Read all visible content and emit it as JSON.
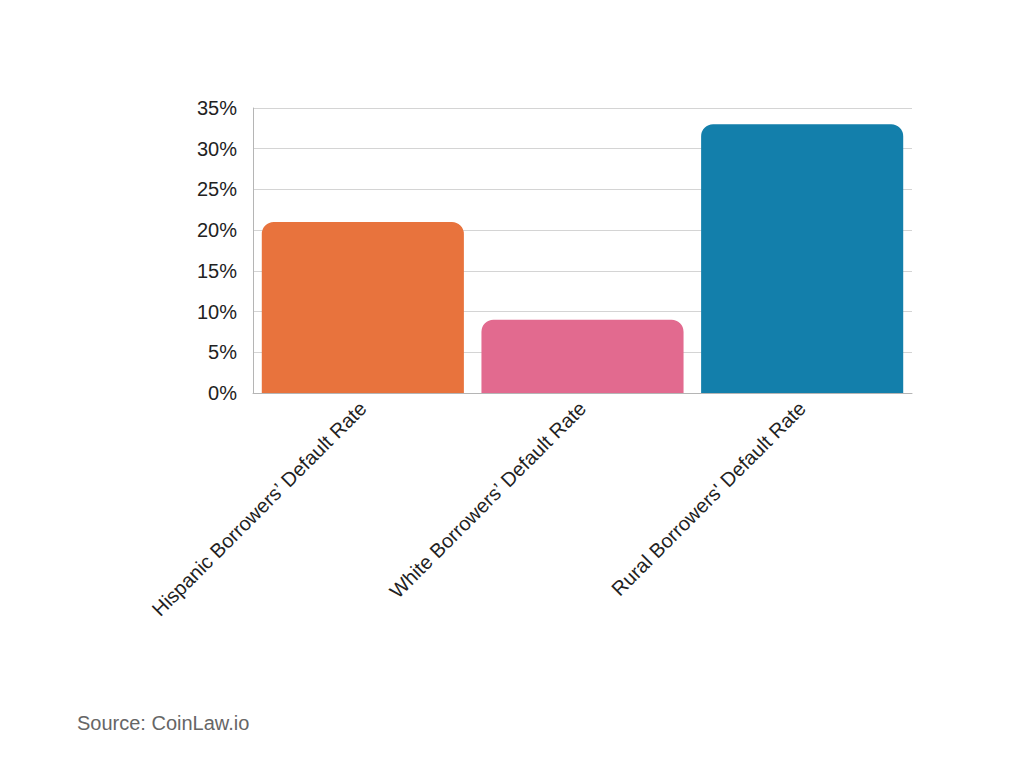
{
  "chart_data": {
    "type": "bar",
    "categories": [
      "Hispanic Borrowers’ Default Rate",
      "White Borrowers’ Default Rate",
      "Rural Borrowers' Default Rate"
    ],
    "values": [
      21,
      9,
      33
    ],
    "colors": [
      "#e8733d",
      "#e26a8f",
      "#137fab"
    ],
    "ylim": [
      0,
      35
    ],
    "yticks": [
      {
        "value": 0,
        "label": "0%"
      },
      {
        "value": 5,
        "label": "5%"
      },
      {
        "value": 10,
        "label": "10%"
      },
      {
        "value": 15,
        "label": "15%"
      },
      {
        "value": 20,
        "label": "20%"
      },
      {
        "value": 25,
        "label": "25%"
      },
      {
        "value": 30,
        "label": "30%"
      },
      {
        "value": 35,
        "label": "35%"
      }
    ],
    "grid": true,
    "source": "Source: CoinLaw.io"
  }
}
